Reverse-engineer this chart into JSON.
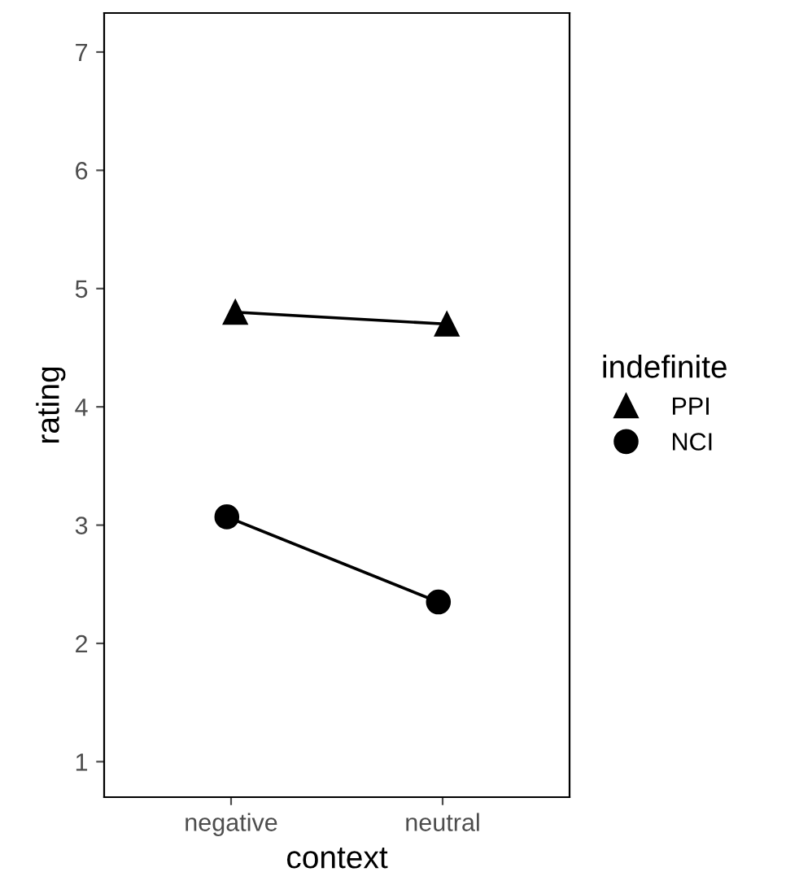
{
  "chart_data": {
    "type": "line",
    "xlabel": "context",
    "ylabel": "rating",
    "legend_title": "indefinite",
    "categories": [
      "negative",
      "neutral"
    ],
    "series": [
      {
        "name": "PPI",
        "color": "#000000",
        "marker": "triangle",
        "values": [
          4.8,
          4.7
        ]
      },
      {
        "name": "NCI",
        "color": "#000000",
        "marker": "circle",
        "values": [
          3.07,
          2.35
        ]
      }
    ],
    "ylim": [
      0.7,
      7.33
    ],
    "yticks": [
      1,
      2,
      3,
      4,
      5,
      6,
      7
    ],
    "grid": false,
    "legend": "right",
    "line_style": "solid"
  }
}
